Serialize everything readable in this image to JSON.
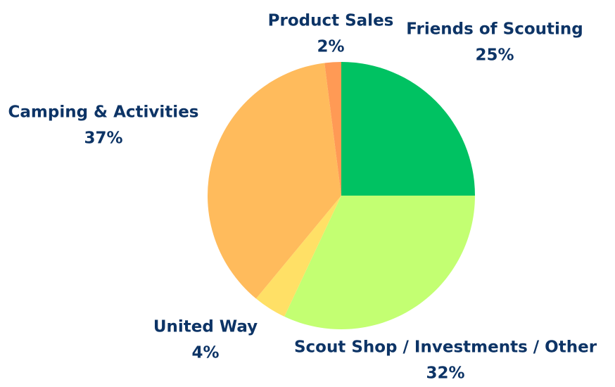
{
  "chart_data": {
    "type": "pie",
    "categories": [
      "Friends of Scouting",
      "Scout Shop / Investments / Other",
      "United Way",
      "Camping & Activities",
      "Product Sales"
    ],
    "values": [
      25,
      32,
      4,
      37,
      2
    ],
    "value_labels": [
      "25%",
      "32%",
      "4%",
      "37%",
      "2%"
    ],
    "colors": [
      "#00c262",
      "#c3ff72",
      "#ffe066",
      "#ffbb5c",
      "#ff9a55"
    ]
  }
}
